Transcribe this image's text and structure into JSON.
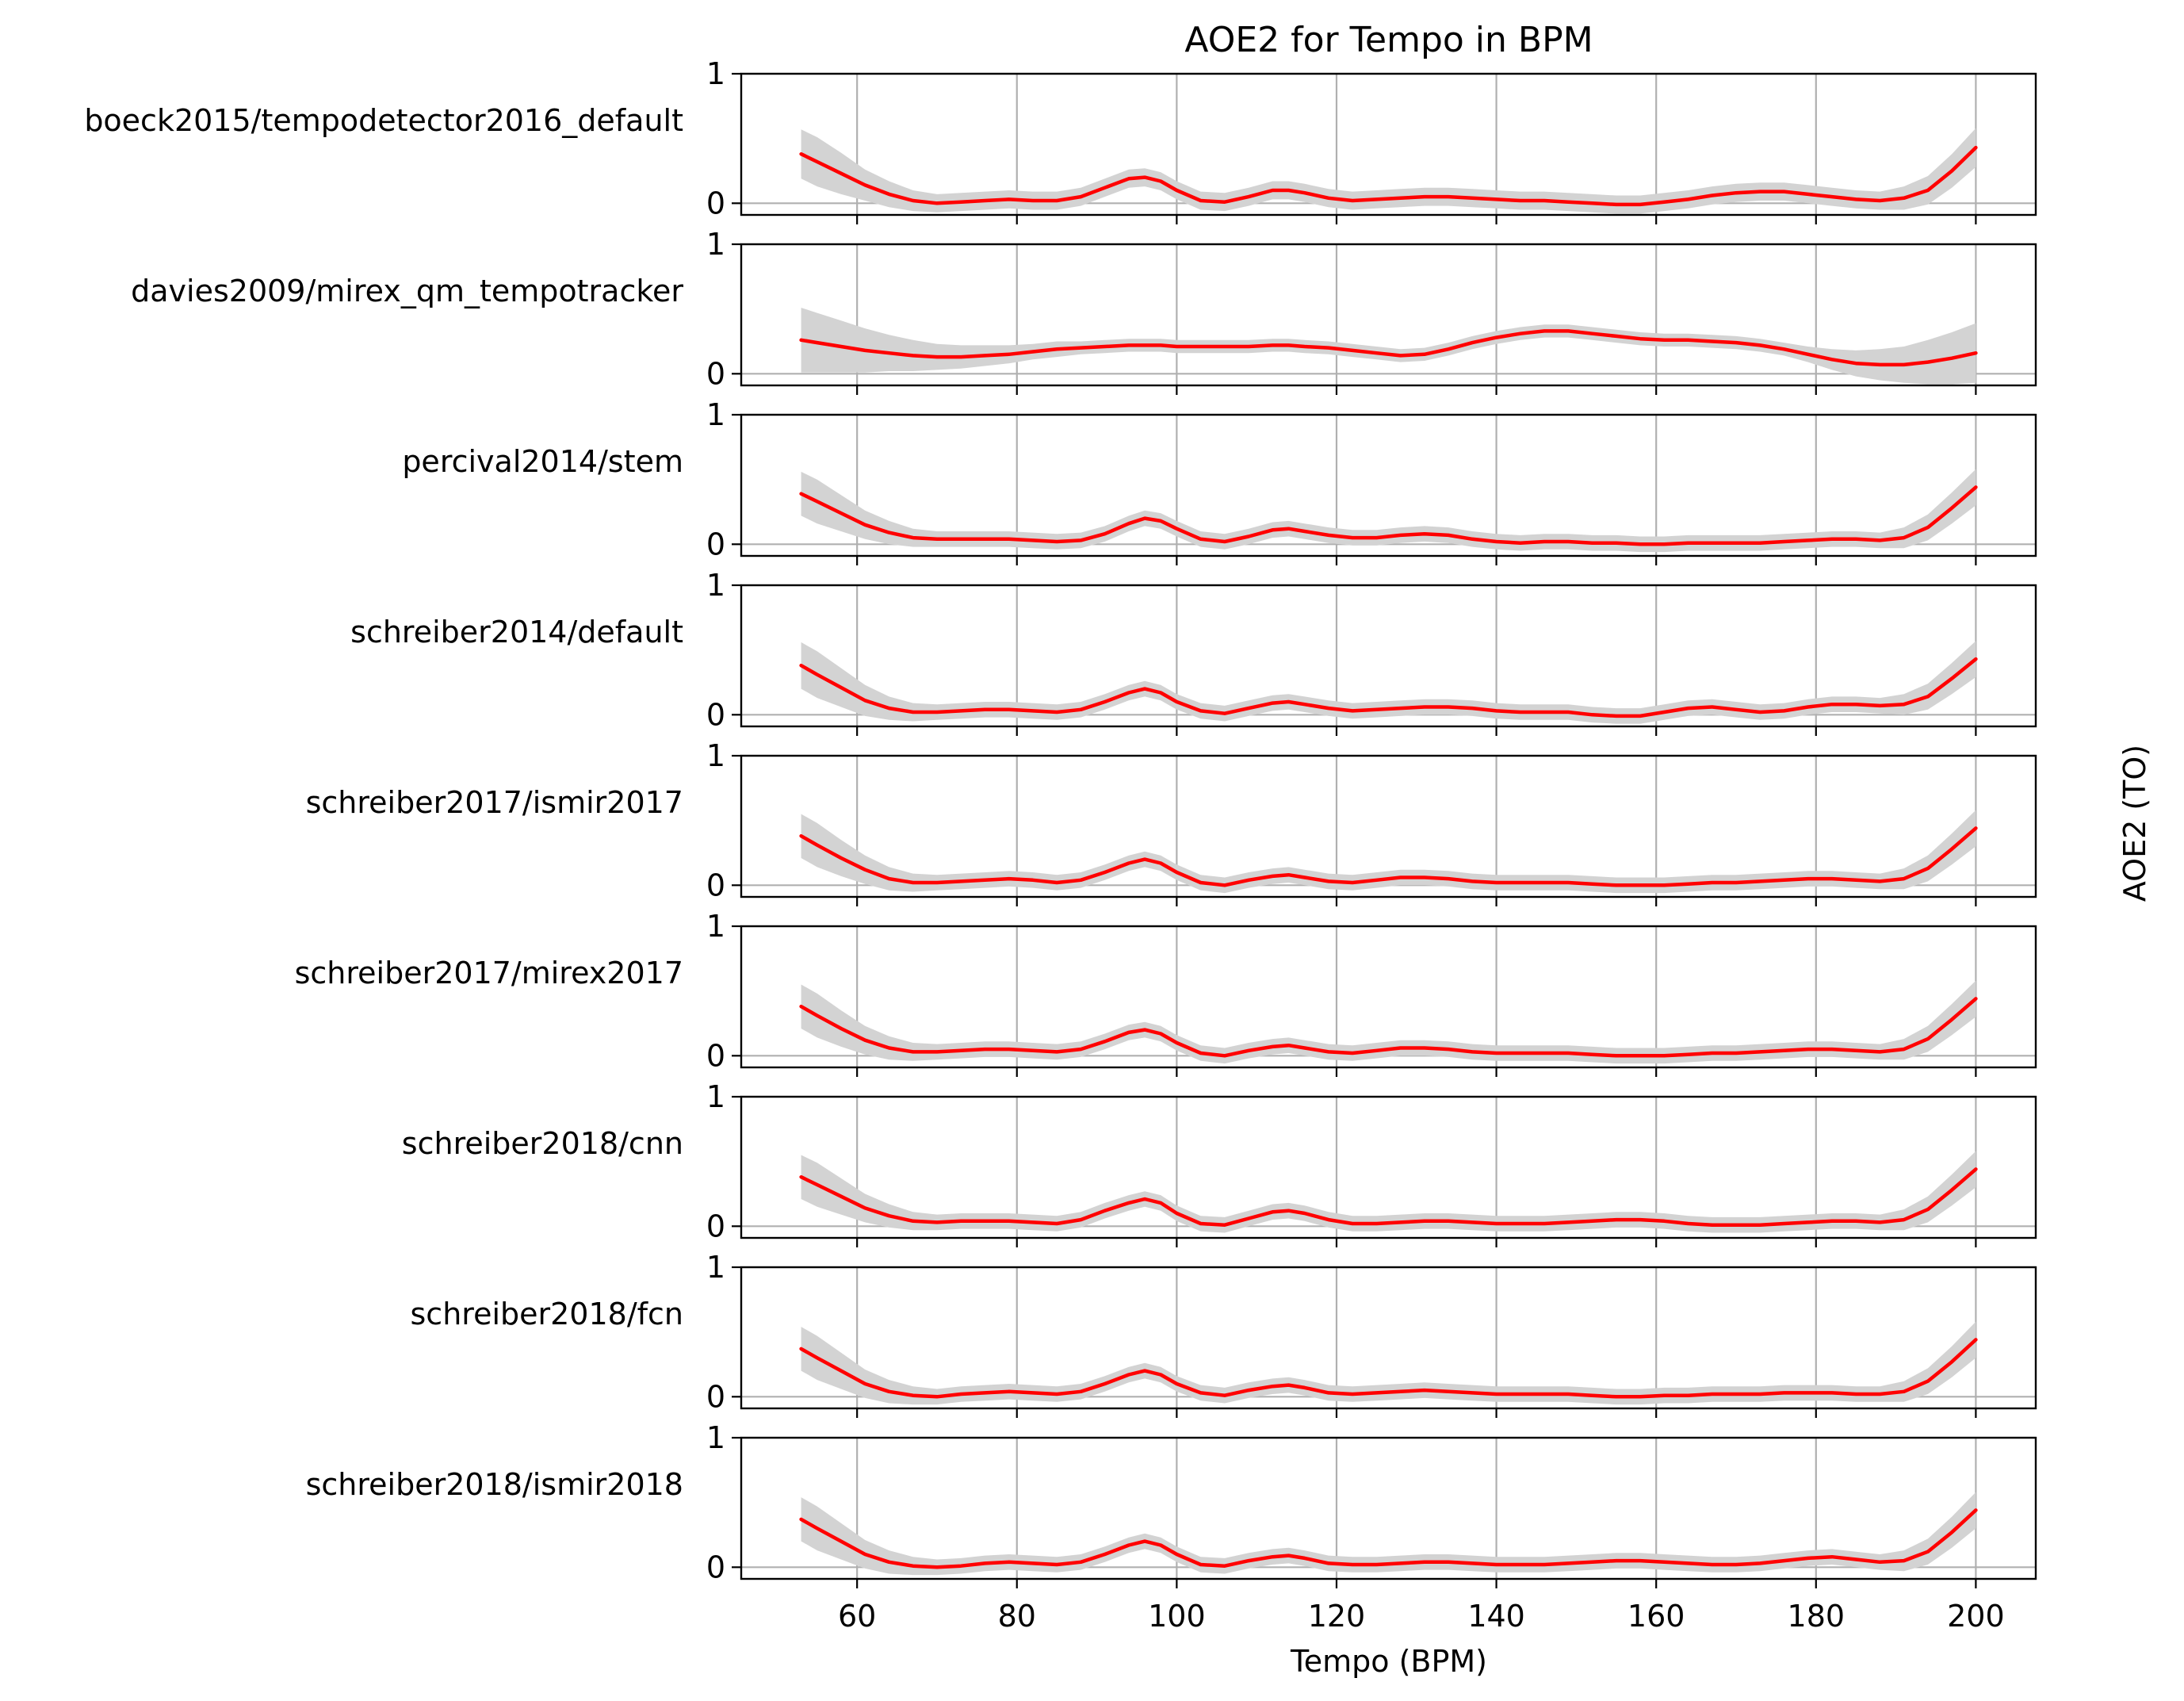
{
  "chart_data": {
    "type": "line",
    "title": "AOE2 for Tempo in BPM",
    "xlabel": "Tempo (BPM)",
    "ylabel": "AOE2 (TO)",
    "xlim": [
      45.5,
      207.5
    ],
    "ylim": [
      -0.09,
      1.0
    ],
    "xticks": [
      60,
      80,
      100,
      120,
      140,
      160,
      180,
      200
    ],
    "yticks": [
      0,
      1
    ],
    "grid": true,
    "line_color": "#ff0000",
    "band_color": "#d3d3d3",
    "x": [
      53,
      55,
      58,
      61,
      64,
      67,
      70,
      73,
      76,
      79,
      82,
      85,
      88,
      91,
      94,
      96,
      98,
      100,
      103,
      106,
      109,
      112,
      114,
      116,
      119,
      122,
      125,
      128,
      131,
      134,
      137,
      140,
      143,
      146,
      149,
      152,
      155,
      158,
      161,
      164,
      167,
      170,
      173,
      176,
      179,
      182,
      185,
      188,
      191,
      194,
      197,
      200
    ],
    "series": [
      {
        "name": "boeck2015/tempodetector2016_default",
        "values": [
          0.38,
          0.32,
          0.23,
          0.14,
          0.07,
          0.02,
          0.0,
          0.01,
          0.02,
          0.03,
          0.02,
          0.02,
          0.05,
          0.12,
          0.19,
          0.2,
          0.17,
          0.1,
          0.02,
          0.01,
          0.05,
          0.1,
          0.1,
          0.08,
          0.04,
          0.02,
          0.03,
          0.04,
          0.05,
          0.05,
          0.04,
          0.03,
          0.02,
          0.02,
          0.01,
          0.0,
          -0.01,
          -0.01,
          0.01,
          0.03,
          0.06,
          0.08,
          0.09,
          0.09,
          0.07,
          0.05,
          0.03,
          0.02,
          0.04,
          0.1,
          0.25,
          0.43
        ],
        "band": [
          0.19,
          0.19,
          0.16,
          0.12,
          0.1,
          0.08,
          0.07,
          0.07,
          0.07,
          0.07,
          0.07,
          0.07,
          0.07,
          0.07,
          0.07,
          0.07,
          0.07,
          0.07,
          0.07,
          0.07,
          0.07,
          0.07,
          0.07,
          0.07,
          0.07,
          0.07,
          0.07,
          0.07,
          0.07,
          0.07,
          0.07,
          0.07,
          0.07,
          0.07,
          0.07,
          0.07,
          0.07,
          0.07,
          0.07,
          0.07,
          0.07,
          0.07,
          0.07,
          0.07,
          0.07,
          0.07,
          0.07,
          0.07,
          0.09,
          0.11,
          0.13,
          0.15
        ]
      },
      {
        "name": "davies2009/mirex_qm_tempotracker",
        "values": [
          0.26,
          0.24,
          0.21,
          0.18,
          0.16,
          0.14,
          0.13,
          0.13,
          0.14,
          0.15,
          0.17,
          0.19,
          0.2,
          0.21,
          0.22,
          0.22,
          0.22,
          0.21,
          0.21,
          0.21,
          0.21,
          0.22,
          0.22,
          0.21,
          0.2,
          0.18,
          0.16,
          0.14,
          0.15,
          0.19,
          0.24,
          0.28,
          0.31,
          0.33,
          0.33,
          0.31,
          0.29,
          0.27,
          0.26,
          0.26,
          0.25,
          0.24,
          0.22,
          0.19,
          0.15,
          0.11,
          0.08,
          0.07,
          0.07,
          0.09,
          0.12,
          0.16
        ],
        "band": [
          0.25,
          0.23,
          0.2,
          0.17,
          0.14,
          0.12,
          0.1,
          0.09,
          0.08,
          0.07,
          0.06,
          0.06,
          0.05,
          0.05,
          0.05,
          0.05,
          0.05,
          0.05,
          0.05,
          0.05,
          0.05,
          0.05,
          0.05,
          0.05,
          0.05,
          0.05,
          0.05,
          0.05,
          0.05,
          0.05,
          0.05,
          0.05,
          0.05,
          0.05,
          0.05,
          0.05,
          0.05,
          0.05,
          0.05,
          0.05,
          0.05,
          0.05,
          0.05,
          0.05,
          0.06,
          0.08,
          0.1,
          0.12,
          0.14,
          0.17,
          0.2,
          0.23
        ]
      },
      {
        "name": "percival2014/stem",
        "values": [
          0.39,
          0.33,
          0.24,
          0.15,
          0.09,
          0.05,
          0.04,
          0.04,
          0.04,
          0.04,
          0.03,
          0.02,
          0.03,
          0.08,
          0.16,
          0.2,
          0.18,
          0.12,
          0.04,
          0.02,
          0.06,
          0.11,
          0.12,
          0.1,
          0.07,
          0.05,
          0.05,
          0.07,
          0.08,
          0.07,
          0.04,
          0.02,
          0.01,
          0.02,
          0.02,
          0.01,
          0.01,
          0.0,
          0.0,
          0.01,
          0.01,
          0.01,
          0.01,
          0.02,
          0.03,
          0.04,
          0.04,
          0.03,
          0.05,
          0.13,
          0.28,
          0.44
        ],
        "band": [
          0.17,
          0.17,
          0.14,
          0.11,
          0.09,
          0.07,
          0.06,
          0.06,
          0.06,
          0.06,
          0.06,
          0.06,
          0.06,
          0.06,
          0.06,
          0.06,
          0.06,
          0.06,
          0.06,
          0.06,
          0.06,
          0.06,
          0.06,
          0.06,
          0.06,
          0.06,
          0.06,
          0.06,
          0.06,
          0.06,
          0.06,
          0.06,
          0.06,
          0.06,
          0.06,
          0.06,
          0.06,
          0.06,
          0.06,
          0.06,
          0.06,
          0.06,
          0.06,
          0.06,
          0.06,
          0.06,
          0.06,
          0.06,
          0.08,
          0.1,
          0.12,
          0.14
        ]
      },
      {
        "name": "schreiber2014/default",
        "values": [
          0.38,
          0.31,
          0.21,
          0.11,
          0.05,
          0.02,
          0.02,
          0.03,
          0.04,
          0.04,
          0.03,
          0.02,
          0.04,
          0.1,
          0.17,
          0.2,
          0.17,
          0.1,
          0.03,
          0.01,
          0.05,
          0.09,
          0.1,
          0.08,
          0.05,
          0.03,
          0.04,
          0.05,
          0.06,
          0.06,
          0.05,
          0.03,
          0.02,
          0.02,
          0.02,
          0.0,
          -0.01,
          -0.01,
          0.02,
          0.05,
          0.06,
          0.04,
          0.02,
          0.03,
          0.06,
          0.08,
          0.08,
          0.07,
          0.08,
          0.14,
          0.28,
          0.43
        ],
        "band": [
          0.18,
          0.18,
          0.15,
          0.12,
          0.09,
          0.07,
          0.06,
          0.06,
          0.06,
          0.06,
          0.06,
          0.06,
          0.06,
          0.06,
          0.06,
          0.06,
          0.06,
          0.06,
          0.06,
          0.06,
          0.06,
          0.06,
          0.06,
          0.06,
          0.06,
          0.06,
          0.06,
          0.06,
          0.06,
          0.06,
          0.06,
          0.06,
          0.06,
          0.06,
          0.06,
          0.06,
          0.06,
          0.06,
          0.06,
          0.06,
          0.06,
          0.06,
          0.06,
          0.06,
          0.06,
          0.06,
          0.06,
          0.06,
          0.08,
          0.1,
          0.12,
          0.14
        ]
      },
      {
        "name": "schreiber2017/ismir2017",
        "values": [
          0.38,
          0.31,
          0.21,
          0.12,
          0.05,
          0.02,
          0.02,
          0.03,
          0.04,
          0.05,
          0.04,
          0.02,
          0.04,
          0.1,
          0.17,
          0.2,
          0.17,
          0.1,
          0.02,
          0.0,
          0.04,
          0.07,
          0.08,
          0.06,
          0.03,
          0.02,
          0.04,
          0.06,
          0.06,
          0.05,
          0.03,
          0.02,
          0.02,
          0.02,
          0.02,
          0.01,
          0.0,
          0.0,
          0.0,
          0.01,
          0.02,
          0.02,
          0.03,
          0.04,
          0.05,
          0.05,
          0.04,
          0.03,
          0.05,
          0.13,
          0.28,
          0.44
        ],
        "band": [
          0.17,
          0.17,
          0.14,
          0.11,
          0.09,
          0.07,
          0.06,
          0.06,
          0.06,
          0.06,
          0.06,
          0.06,
          0.06,
          0.06,
          0.06,
          0.06,
          0.06,
          0.06,
          0.06,
          0.06,
          0.06,
          0.06,
          0.06,
          0.06,
          0.06,
          0.06,
          0.06,
          0.06,
          0.06,
          0.06,
          0.06,
          0.06,
          0.06,
          0.06,
          0.06,
          0.06,
          0.06,
          0.06,
          0.06,
          0.06,
          0.06,
          0.06,
          0.06,
          0.06,
          0.06,
          0.06,
          0.06,
          0.06,
          0.08,
          0.1,
          0.12,
          0.14
        ]
      },
      {
        "name": "schreiber2017/mirex2017",
        "values": [
          0.38,
          0.31,
          0.21,
          0.12,
          0.06,
          0.03,
          0.03,
          0.04,
          0.05,
          0.05,
          0.04,
          0.03,
          0.05,
          0.11,
          0.18,
          0.2,
          0.17,
          0.1,
          0.02,
          0.0,
          0.04,
          0.07,
          0.08,
          0.06,
          0.03,
          0.02,
          0.04,
          0.06,
          0.06,
          0.05,
          0.03,
          0.02,
          0.02,
          0.02,
          0.02,
          0.01,
          0.0,
          0.0,
          0.0,
          0.01,
          0.02,
          0.02,
          0.03,
          0.04,
          0.05,
          0.05,
          0.04,
          0.03,
          0.05,
          0.13,
          0.28,
          0.44
        ],
        "band": [
          0.17,
          0.17,
          0.14,
          0.11,
          0.09,
          0.07,
          0.06,
          0.06,
          0.06,
          0.06,
          0.06,
          0.06,
          0.06,
          0.06,
          0.06,
          0.06,
          0.06,
          0.06,
          0.06,
          0.06,
          0.06,
          0.06,
          0.06,
          0.06,
          0.06,
          0.06,
          0.06,
          0.06,
          0.06,
          0.06,
          0.06,
          0.06,
          0.06,
          0.06,
          0.06,
          0.06,
          0.06,
          0.06,
          0.06,
          0.06,
          0.06,
          0.06,
          0.06,
          0.06,
          0.06,
          0.06,
          0.06,
          0.06,
          0.08,
          0.1,
          0.12,
          0.14
        ]
      },
      {
        "name": "schreiber2018/cnn",
        "values": [
          0.38,
          0.32,
          0.23,
          0.14,
          0.08,
          0.04,
          0.03,
          0.04,
          0.04,
          0.04,
          0.03,
          0.02,
          0.05,
          0.12,
          0.18,
          0.21,
          0.18,
          0.1,
          0.02,
          0.01,
          0.06,
          0.11,
          0.12,
          0.1,
          0.05,
          0.02,
          0.02,
          0.03,
          0.04,
          0.04,
          0.03,
          0.02,
          0.02,
          0.02,
          0.03,
          0.04,
          0.05,
          0.05,
          0.04,
          0.02,
          0.01,
          0.01,
          0.01,
          0.02,
          0.03,
          0.04,
          0.04,
          0.03,
          0.05,
          0.13,
          0.28,
          0.44
        ],
        "band": [
          0.17,
          0.17,
          0.14,
          0.11,
          0.09,
          0.07,
          0.06,
          0.06,
          0.06,
          0.06,
          0.06,
          0.06,
          0.06,
          0.06,
          0.06,
          0.06,
          0.06,
          0.06,
          0.06,
          0.06,
          0.06,
          0.06,
          0.06,
          0.06,
          0.06,
          0.06,
          0.06,
          0.06,
          0.06,
          0.06,
          0.06,
          0.06,
          0.06,
          0.06,
          0.06,
          0.06,
          0.06,
          0.06,
          0.06,
          0.06,
          0.06,
          0.06,
          0.06,
          0.06,
          0.06,
          0.06,
          0.06,
          0.06,
          0.08,
          0.1,
          0.12,
          0.14
        ]
      },
      {
        "name": "schreiber2018/fcn",
        "values": [
          0.37,
          0.3,
          0.2,
          0.1,
          0.04,
          0.01,
          0.0,
          0.02,
          0.03,
          0.04,
          0.03,
          0.02,
          0.04,
          0.1,
          0.17,
          0.2,
          0.17,
          0.1,
          0.03,
          0.01,
          0.05,
          0.08,
          0.09,
          0.07,
          0.03,
          0.02,
          0.03,
          0.04,
          0.05,
          0.04,
          0.03,
          0.02,
          0.02,
          0.02,
          0.02,
          0.01,
          0.0,
          0.0,
          0.01,
          0.01,
          0.02,
          0.02,
          0.02,
          0.03,
          0.03,
          0.03,
          0.02,
          0.02,
          0.04,
          0.12,
          0.27,
          0.44
        ],
        "band": [
          0.17,
          0.17,
          0.14,
          0.11,
          0.09,
          0.07,
          0.06,
          0.06,
          0.06,
          0.06,
          0.06,
          0.06,
          0.06,
          0.06,
          0.06,
          0.06,
          0.06,
          0.06,
          0.06,
          0.06,
          0.06,
          0.06,
          0.06,
          0.06,
          0.06,
          0.06,
          0.06,
          0.06,
          0.06,
          0.06,
          0.06,
          0.06,
          0.06,
          0.06,
          0.06,
          0.06,
          0.06,
          0.06,
          0.06,
          0.06,
          0.06,
          0.06,
          0.06,
          0.06,
          0.06,
          0.06,
          0.06,
          0.06,
          0.08,
          0.1,
          0.12,
          0.14
        ]
      },
      {
        "name": "schreiber2018/ismir2018",
        "values": [
          0.37,
          0.3,
          0.2,
          0.1,
          0.04,
          0.01,
          0.0,
          0.01,
          0.03,
          0.04,
          0.03,
          0.02,
          0.04,
          0.1,
          0.17,
          0.2,
          0.17,
          0.1,
          0.02,
          0.01,
          0.05,
          0.08,
          0.09,
          0.07,
          0.03,
          0.02,
          0.02,
          0.03,
          0.04,
          0.04,
          0.03,
          0.02,
          0.02,
          0.02,
          0.03,
          0.04,
          0.05,
          0.05,
          0.04,
          0.03,
          0.02,
          0.02,
          0.03,
          0.05,
          0.07,
          0.08,
          0.06,
          0.04,
          0.05,
          0.12,
          0.27,
          0.44
        ],
        "band": [
          0.17,
          0.17,
          0.14,
          0.11,
          0.09,
          0.07,
          0.06,
          0.06,
          0.06,
          0.06,
          0.06,
          0.06,
          0.06,
          0.06,
          0.06,
          0.06,
          0.06,
          0.06,
          0.06,
          0.06,
          0.06,
          0.06,
          0.06,
          0.06,
          0.06,
          0.06,
          0.06,
          0.06,
          0.06,
          0.06,
          0.06,
          0.06,
          0.06,
          0.06,
          0.06,
          0.06,
          0.06,
          0.06,
          0.06,
          0.06,
          0.06,
          0.06,
          0.06,
          0.06,
          0.06,
          0.06,
          0.06,
          0.06,
          0.08,
          0.1,
          0.12,
          0.14
        ]
      }
    ]
  }
}
